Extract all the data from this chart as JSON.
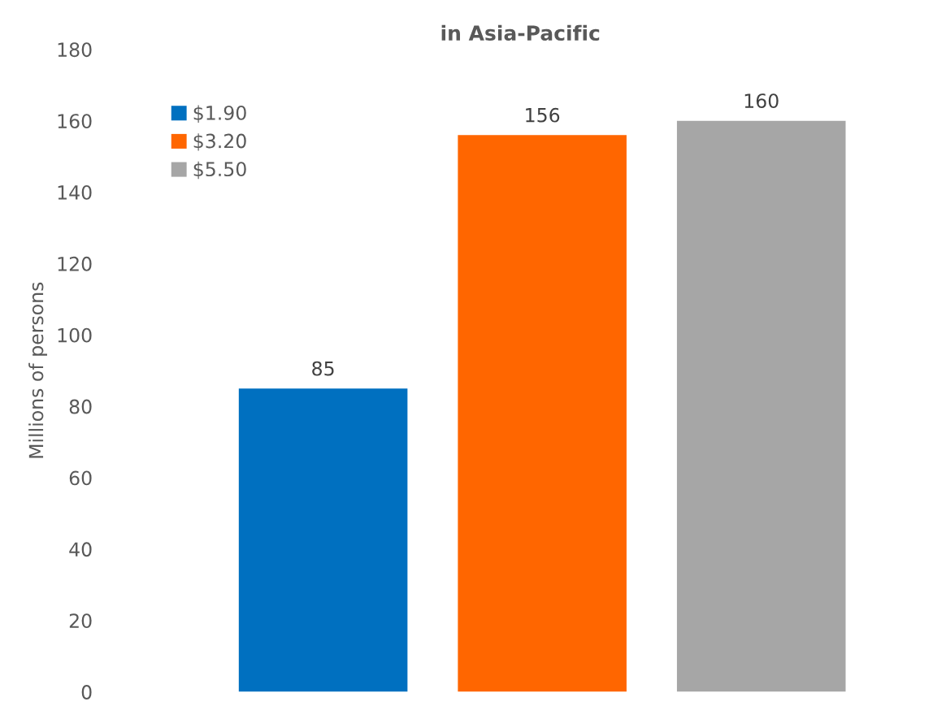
{
  "chart_data": {
    "type": "bar",
    "title": "in Asia-Pacific",
    "ylabel": "Millions of persons",
    "categories": [
      null
    ],
    "series": [
      {
        "name": "$1.90",
        "color": "#0070c0",
        "values": [
          85
        ]
      },
      {
        "name": "$3.20",
        "color": "#ff6600",
        "values": [
          156
        ]
      },
      {
        "name": "$5.50",
        "color": "#a6a6a6",
        "values": [
          160
        ]
      }
    ],
    "ylim": [
      0,
      180
    ],
    "yticks": [
      0,
      20,
      40,
      60,
      80,
      100,
      120,
      140,
      160,
      180
    ],
    "data_labels": true,
    "grid": false,
    "legend": "top left"
  }
}
